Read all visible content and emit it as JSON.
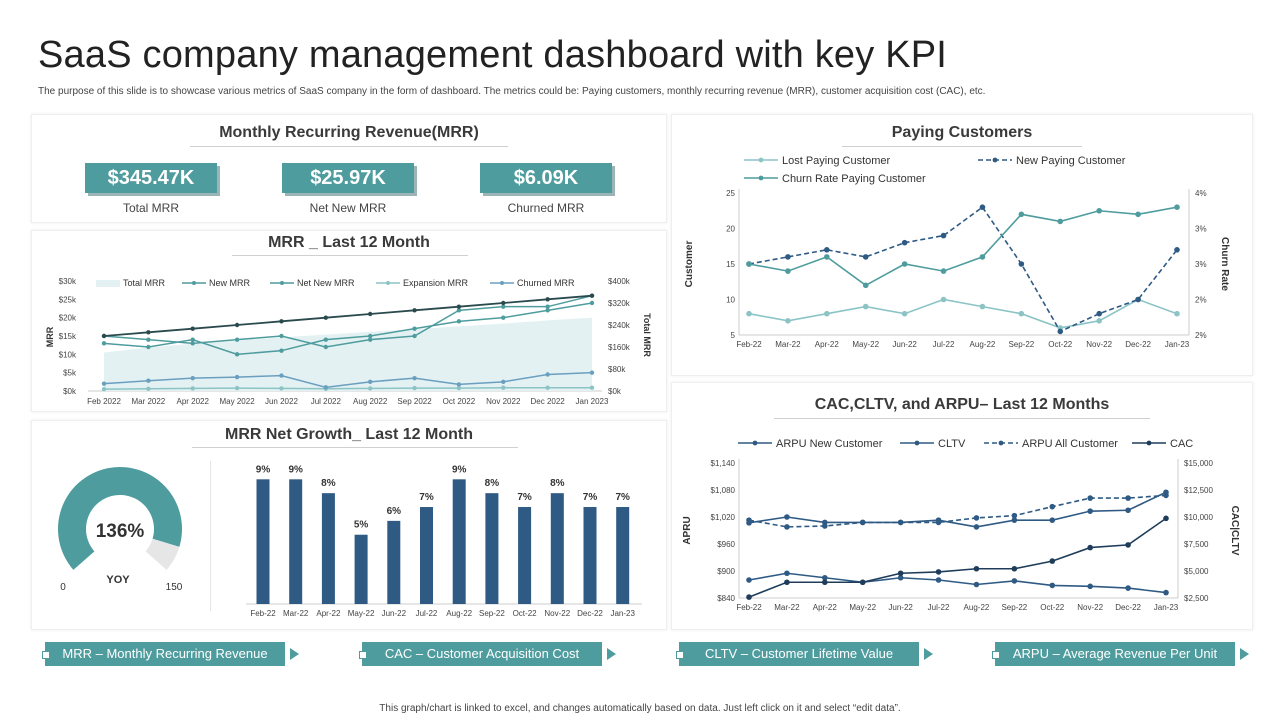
{
  "header": {
    "title": "SaaS company management dashboard with key KPI",
    "subtitle": "The purpose of this slide is to showcase various metrics of SaaS company in the form of dashboard. The metrics could be: Paying customers, monthly recurring revenue (MRR), customer acquisition cost (CAC), etc."
  },
  "mrr_panel": {
    "title": "Monthly Recurring Revenue(MRR)",
    "kpis": [
      {
        "value": "$345.47K",
        "label": "Total  MRR"
      },
      {
        "value": "$25.97K",
        "label": "Net New MRR"
      },
      {
        "value": "$6.09K",
        "label": "Churned MRR"
      }
    ]
  },
  "mrr12_panel": {
    "title": "MRR _ Last 12 Month"
  },
  "growth_panel": {
    "title": "MRR Net Growth_ Last 12 Month"
  },
  "paying_panel": {
    "title": "Paying Customers"
  },
  "cac_panel": {
    "title": "CAC,CLTV, and ARPU– Last 12 Months"
  },
  "gauge": {
    "value": 136,
    "value_label": "136%",
    "label": "YOY",
    "min_label": "0",
    "max_label": "150",
    "min": 0,
    "max": 150
  },
  "colors": {
    "teal": "#4e9c9e",
    "navy": "#2e5a84",
    "dark": "#1f3d5a",
    "light_teal": "#8cc4c6",
    "area": "#e3f1f2"
  },
  "banners": [
    "MRR – Monthly Recurring Revenue",
    "CAC – Customer Acquisition Cost",
    "CLTV – Customer Lifetime Value",
    "ARPU – Average Revenue Per Unit"
  ],
  "footer": "This graph/chart is linked to excel, and changes automatically based on data. Just left click on it and select “edit data”.",
  "chart_data": [
    {
      "id": "mrr12",
      "type": "line",
      "title": "MRR _ Last 12 Month",
      "categories": [
        "Feb 2022",
        "Mar 2022",
        "Apr 2022",
        "May 2022",
        "Jun 2022",
        "Jul 2022",
        "Aug 2022",
        "Sep 2022",
        "Oct 2022",
        "Nov 2022",
        "Dec 2022",
        "Jan 2023"
      ],
      "ylabel": "MRR",
      "y2label": "Total MRR",
      "yticks": [
        "$0k",
        "$5k",
        "$10k",
        "$15k",
        "$20k",
        "$25k",
        "$30k"
      ],
      "y2ticks": [
        "$0k",
        "$80k",
        "$160k",
        "$240k",
        "$320k",
        "$400k"
      ],
      "ylim": [
        0,
        30
      ],
      "y2lim": [
        0,
        400
      ],
      "series": [
        {
          "name": "Total MRR",
          "axis": "right",
          "kind": "area",
          "values": [
            140,
            158,
            172,
            183,
            195,
            205,
            215,
            225,
            235,
            245,
            257,
            267
          ]
        },
        {
          "name": "New MRR",
          "axis": "left",
          "values": [
            13,
            12,
            14,
            10,
            11,
            14,
            15,
            17,
            19,
            20,
            22,
            24
          ]
        },
        {
          "name": "Net New MRR",
          "axis": "left",
          "values": [
            15,
            14,
            13,
            14,
            15,
            12,
            14,
            15,
            22,
            23,
            23,
            26
          ]
        },
        {
          "name": "Expansion MRR",
          "axis": "left",
          "values": [
            0.5,
            0.6,
            0.7,
            0.8,
            0.7,
            0.6,
            0.7,
            0.8,
            0.8,
            0.9,
            0.9,
            0.9
          ]
        },
        {
          "name": "Churned MRR",
          "axis": "left",
          "values": [
            2,
            2.8,
            3.5,
            3.8,
            4.2,
            1,
            2.5,
            3.5,
            1.8,
            2.5,
            4.5,
            5
          ]
        },
        {
          "name": "Total MRR line",
          "axis": "left",
          "values": [
            15,
            16,
            17,
            18,
            19,
            20,
            21,
            22,
            23,
            24,
            25,
            26
          ]
        }
      ],
      "legend": [
        "Total MRR",
        "New MRR",
        "Net New MRR",
        "Expansion MRR",
        "Churned MRR"
      ]
    },
    {
      "id": "growth",
      "type": "bar",
      "title": "MRR Net Growth_ Last 12 Month",
      "categories": [
        "Feb-22",
        "Mar-22",
        "Apr-22",
        "May-22",
        "Jun-22",
        "Jul-22",
        "Aug-22",
        "Sep-22",
        "Oct-22",
        "Nov-22",
        "Dec-22",
        "Jan-23"
      ],
      "values": [
        9,
        9,
        8,
        5,
        6,
        7,
        9,
        8,
        7,
        8,
        7,
        7
      ],
      "labels": [
        "9%",
        "9%",
        "8%",
        "5%",
        "6%",
        "7%",
        "9%",
        "8%",
        "7%",
        "8%",
        "7%",
        "7%"
      ],
      "ylim": [
        0,
        9.6
      ]
    },
    {
      "id": "paying",
      "type": "line",
      "title": "Paying Customers",
      "categories": [
        "Feb-22",
        "Mar-22",
        "Apr-22",
        "May-22",
        "Jun-22",
        "Jul-22",
        "Aug-22",
        "Sep-22",
        "Oct-22",
        "Nov-22",
        "Dec-22",
        "Jan-23"
      ],
      "ylabel": "Customer",
      "y2label": "Churn Rate",
      "yticks": [
        "5",
        "10",
        "15",
        "20",
        "25"
      ],
      "y2ticks": [
        "2%",
        "2%",
        "3%",
        "3%",
        "4%"
      ],
      "ylim": [
        5,
        25
      ],
      "series": [
        {
          "name": "Lost Paying Customer",
          "style": "solid",
          "color": "light",
          "values": [
            8,
            7,
            8,
            9,
            8,
            10,
            9,
            8,
            6,
            7,
            10,
            8
          ]
        },
        {
          "name": "New Paying Customer",
          "style": "dashed",
          "color": "navy",
          "values": [
            15,
            16,
            17,
            16,
            18,
            19,
            23,
            15,
            5.5,
            8,
            10,
            17
          ]
        },
        {
          "name": "Churn Rate Paying Customer",
          "style": "solid",
          "color": "teal",
          "values": [
            15,
            14,
            16,
            12,
            15,
            14,
            16,
            22,
            21,
            22.5,
            22,
            23
          ]
        }
      ],
      "legend": [
        "Lost Paying Customer",
        "New Paying Customer",
        "Churn Rate Paying Customer"
      ]
    },
    {
      "id": "cac",
      "type": "line",
      "title": "CAC,CLTV, and ARPU– Last 12 Months",
      "categories": [
        "Feb-22",
        "Mar-22",
        "Apr-22",
        "May-22",
        "Jun-22",
        "Jul-22",
        "Aug-22",
        "Sep-22",
        "Oct-22",
        "Nov-22",
        "Dec-22",
        "Jan-23"
      ],
      "ylabel": "APRU",
      "y2label": "CAC|CLTV",
      "yticks": [
        "$840",
        "$900",
        "$960",
        "$1,020",
        "$1,080",
        "$1,140"
      ],
      "y2ticks": [
        "$2,500",
        "$5,000",
        "$7,500",
        "$10,000",
        "$12,500",
        "$15,000"
      ],
      "ylim": [
        840,
        1140
      ],
      "series": [
        {
          "name": "ARPU New Customer",
          "style": "solid",
          "color": "navy",
          "values": [
            880,
            895,
            885,
            875,
            885,
            880,
            870,
            878,
            868,
            866,
            862,
            852
          ]
        },
        {
          "name": "CLTV",
          "style": "solid",
          "color": "navy",
          "values": [
            1007,
            1020,
            1008,
            1008,
            1008,
            1013,
            998,
            1013,
            1013,
            1033,
            1035,
            1075
          ]
        },
        {
          "name": "ARPU All Customer",
          "style": "dashed",
          "color": "navy",
          "values": [
            1013,
            998,
            1000,
            1008,
            1008,
            1008,
            1018,
            1023,
            1043,
            1062,
            1062,
            1068
          ]
        },
        {
          "name": "CAC",
          "style": "solid",
          "color": "dark",
          "values": [
            842,
            875,
            875,
            875,
            895,
            898,
            905,
            905,
            922,
            952,
            958,
            1017
          ]
        }
      ],
      "legend": [
        "ARPU New Customer",
        "CLTV",
        "ARPU All Customer",
        "CAC"
      ]
    }
  ]
}
